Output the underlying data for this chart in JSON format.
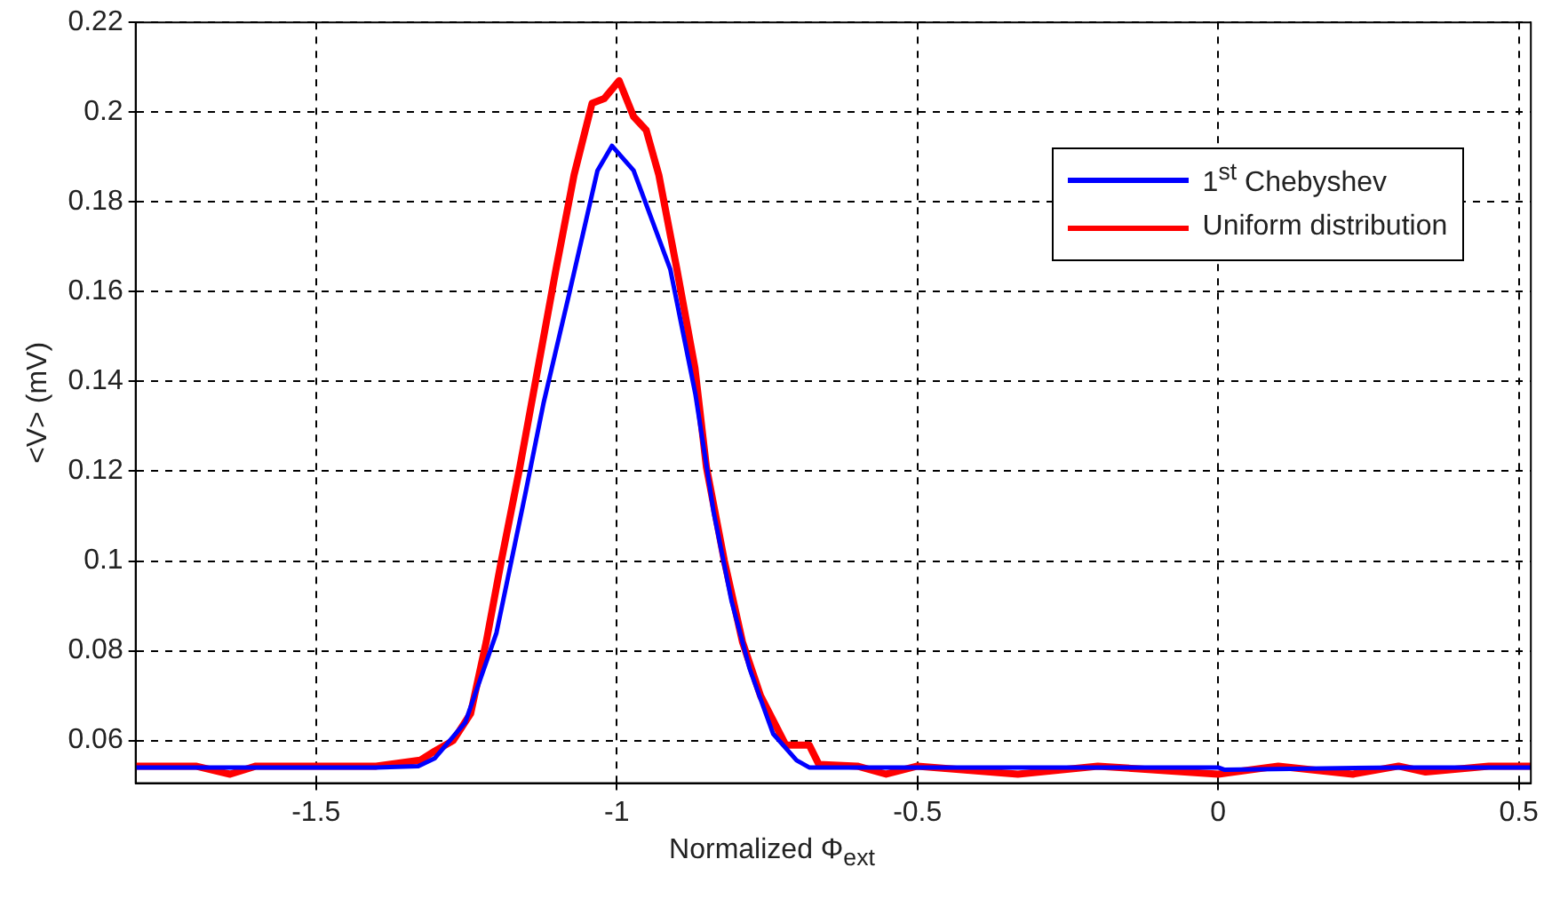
{
  "chart_data": {
    "type": "line",
    "xlabel": "Normalized Φ$_{ext}$",
    "ylabel": "<V> (mV)",
    "xlim": [
      -1.8,
      0.52
    ],
    "xticks": [
      -1.5,
      -1,
      -0.5,
      0,
      0.5
    ],
    "ylim": [
      0.0505,
      0.22
    ],
    "yticks": [
      0.06,
      0.08,
      0.1,
      0.12,
      0.14,
      0.16,
      0.18,
      0.2,
      0.22
    ],
    "grid": true,
    "legend": "top right",
    "marker": "none",
    "line_style": "solid",
    "series": [
      {
        "name": "1$^{st}$ Chebyshev",
        "color": "#0000ff",
        "x": [
          -1.8,
          -1.6,
          -1.4,
          -1.33,
          -1.303,
          -1.252,
          -1.2,
          -1.152,
          -1.122,
          -1.08,
          -1.032,
          -1.008,
          -0.972,
          -0.911,
          -0.869,
          -0.839,
          -0.809,
          -0.779,
          -0.74,
          -0.701,
          -0.68,
          -0.55,
          -0.3,
          0,
          0.01,
          0.3,
          0.52
        ],
        "values": [
          0.054,
          0.054,
          0.054,
          0.0543,
          0.056,
          0.064,
          0.084,
          0.115,
          0.135,
          0.159,
          0.187,
          0.1925,
          0.187,
          0.165,
          0.137,
          0.111,
          0.091,
          0.076,
          0.0615,
          0.0556,
          0.054,
          0.054,
          0.054,
          0.054,
          0.0535,
          0.054,
          0.054
        ]
      },
      {
        "name": "Uniform distribution",
        "color": "#ff0000",
        "x": [
          -1.8,
          -1.7,
          -1.643,
          -1.6,
          -1.5,
          -1.4,
          -1.327,
          -1.303,
          -1.272,
          -1.243,
          -1.217,
          -1.192,
          -1.161,
          -1.131,
          -1.101,
          -1.071,
          -1.041,
          -1.021,
          -0.996,
          -0.972,
          -0.951,
          -0.93,
          -0.9,
          -0.87,
          -0.851,
          -0.821,
          -0.791,
          -0.761,
          -0.719,
          -0.68,
          -0.664,
          -0.6,
          -0.552,
          -0.5,
          -0.333,
          -0.2,
          0,
          0.1,
          0.224,
          0.3,
          0.345,
          0.45,
          0.52
        ],
        "values": [
          0.0543,
          0.0543,
          0.0525,
          0.0543,
          0.0543,
          0.0543,
          0.0556,
          0.0576,
          0.06,
          0.066,
          0.082,
          0.1,
          0.121,
          0.143,
          0.165,
          0.186,
          0.202,
          0.203,
          0.207,
          0.199,
          0.196,
          0.186,
          0.165,
          0.143,
          0.121,
          0.1,
          0.082,
          0.07,
          0.059,
          0.059,
          0.0547,
          0.0543,
          0.0525,
          0.0543,
          0.0525,
          0.0543,
          0.0525,
          0.0543,
          0.0525,
          0.0543,
          0.053,
          0.0543,
          0.0543
        ]
      }
    ]
  }
}
